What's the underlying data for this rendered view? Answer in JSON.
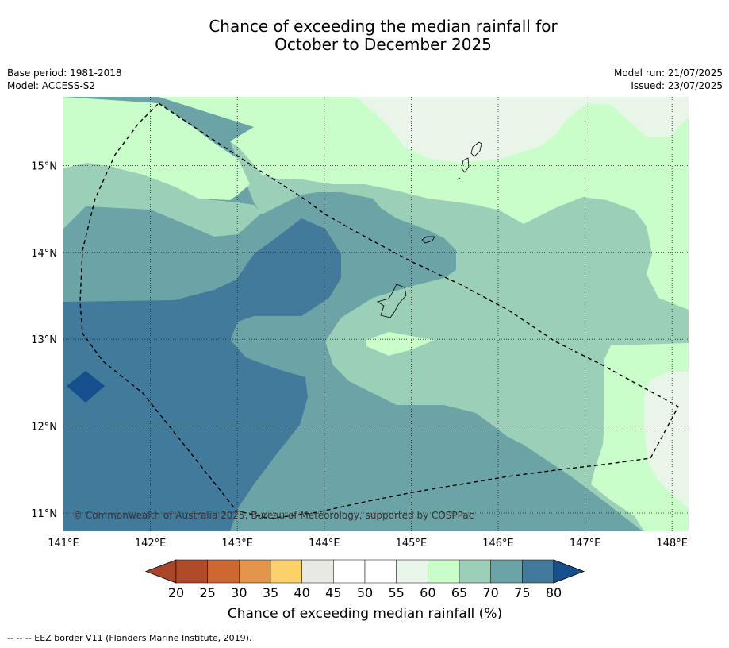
{
  "title_line1": "Chance of exceeding the median rainfall for",
  "title_line2": "October to December 2025",
  "base_period": "Base period: 1981-2018",
  "model": "Model: ACCESS-S2",
  "model_run": "Model run: 21/07/2025",
  "issued": "Issued: 23/07/2025",
  "credit": "© Commonwealth of Australia 2025, Bureau of Meteorology, supported by COSPPac",
  "footer": "--  --  -- EEZ border V11 (Flanders Marine Institute, 2019).",
  "colorbar": {
    "title": "Chance of exceeding median rainfall (%)",
    "ticks": [
      "20",
      "25",
      "30",
      "35",
      "40",
      "45",
      "50",
      "55",
      "60",
      "65",
      "70",
      "75",
      "80"
    ],
    "colors": [
      "#b04a28",
      "#cf6733",
      "#e39548",
      "#fdd169",
      "#e9e9e4",
      "#ffffff",
      "#ffffff",
      "#e8f5e8",
      "#c9fdc9",
      "#9ccfb8",
      "#6ba3a6",
      "#417a9b"
    ],
    "under_color": "#a8452a",
    "over_color": "#154f8c"
  },
  "map": {
    "lon_ticks": [
      "141°E",
      "142°E",
      "143°E",
      "144°E",
      "145°E",
      "146°E",
      "147°E",
      "148°E"
    ],
    "lat_ticks": [
      "15°N",
      "14°N",
      "13°N",
      "12°N",
      "11°N"
    ],
    "lon_range": [
      141.0,
      148.2
    ],
    "lat_range": [
      10.8,
      15.8
    ]
  }
}
